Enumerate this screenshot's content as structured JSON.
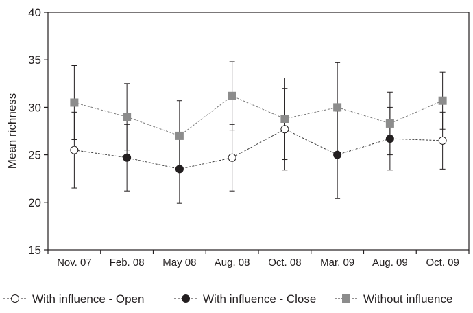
{
  "chart_data": {
    "type": "line",
    "title": "",
    "xlabel": "",
    "ylabel": "Mean richness",
    "ylim": [
      15,
      40
    ],
    "yticks": [
      15,
      20,
      25,
      30,
      35,
      40
    ],
    "categories": [
      "Nov. 07",
      "Feb. 08",
      "May 08",
      "Aug. 08",
      "Oct. 08",
      "Mar. 09",
      "Aug. 09",
      "Oct. 09"
    ],
    "grid": false,
    "legend_position": "bottom",
    "series": [
      {
        "name": "With influence - Open",
        "marker": "open-circle",
        "line_style": "dashed",
        "color": "#231f20",
        "values": [
          25.5,
          24.7,
          23.5,
          24.7,
          27.7,
          25.0,
          26.7,
          26.5
        ],
        "error": [
          4.0,
          3.5,
          3.6,
          3.5,
          4.3,
          4.6,
          3.3,
          3.0
        ]
      },
      {
        "name": "With influence - Close",
        "marker": "filled-circle",
        "line_style": "dashed",
        "color": "#231f20",
        "values": [
          25.5,
          24.7,
          23.5,
          24.7,
          27.7,
          25.0,
          26.7,
          26.5
        ],
        "error": [
          4.0,
          3.5,
          3.6,
          3.5,
          4.3,
          4.6,
          3.3,
          3.0
        ]
      },
      {
        "name": "Without influence",
        "marker": "square",
        "line_style": "dashed",
        "color": "#8c8c8c",
        "values": [
          30.5,
          29.0,
          27.0,
          31.2,
          28.8,
          30.0,
          28.3,
          30.7
        ],
        "error": [
          3.9,
          3.5,
          3.7,
          3.6,
          4.3,
          4.7,
          3.3,
          3.0
        ]
      }
    ],
    "point_marker_series": [
      0,
      1,
      1,
      0,
      0,
      1,
      1,
      0
    ]
  }
}
